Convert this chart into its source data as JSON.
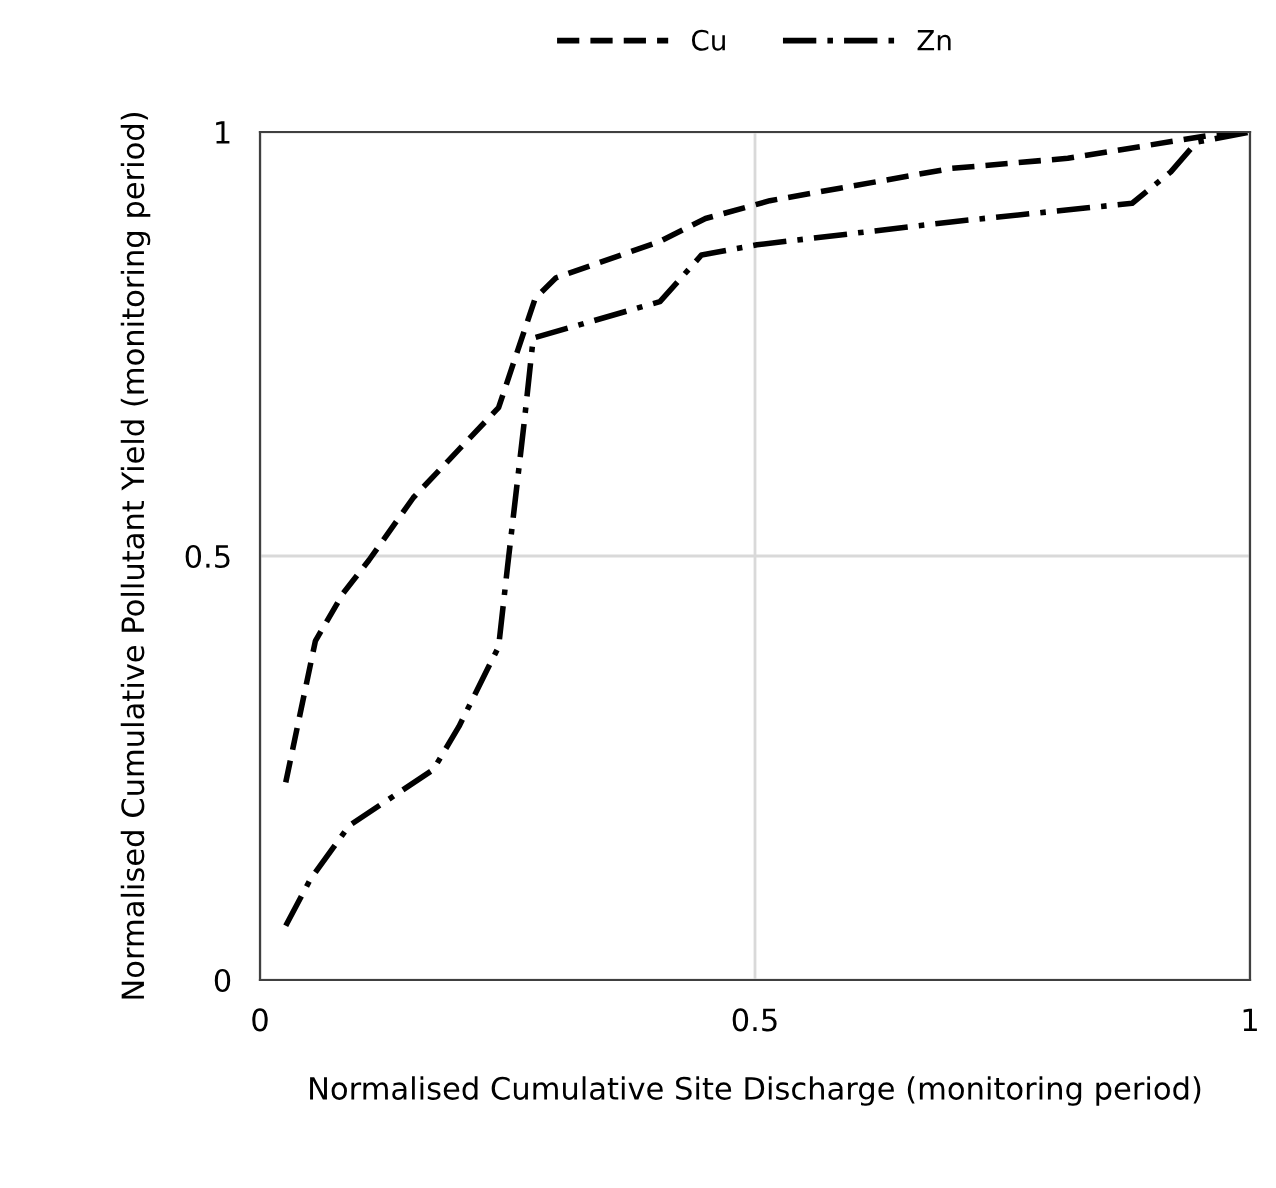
{
  "chart_data": {
    "type": "line",
    "xlabel": "Normalised Cumulative Site Discharge (monitoring period)",
    "ylabel": "Normalised Cumulative Pollutant Yield (monitoring period)",
    "xlim": [
      0,
      1
    ],
    "ylim": [
      0,
      1
    ],
    "xticks": [
      0,
      0.5,
      1
    ],
    "yticks": [
      0,
      0.5,
      1
    ],
    "grid": true,
    "legend": "top",
    "series": [
      {
        "name": "Cu",
        "color": "#000000",
        "line_style": "dashed",
        "x": [
          0.026,
          0.056,
          0.084,
          0.11,
          0.155,
          0.241,
          0.278,
          0.299,
          0.404,
          0.45,
          0.515,
          0.698,
          0.816,
          0.959,
          1.0
        ],
        "values": [
          0.233,
          0.4,
          0.456,
          0.495,
          0.569,
          0.675,
          0.804,
          0.828,
          0.871,
          0.898,
          0.919,
          0.957,
          0.969,
          0.996,
          1.0
        ]
      },
      {
        "name": "Zn",
        "color": "#000000",
        "line_style": "dashdot",
        "x": [
          0.026,
          0.051,
          0.09,
          0.175,
          0.201,
          0.241,
          0.25,
          0.267,
          0.276,
          0.404,
          0.446,
          0.502,
          0.698,
          0.881,
          0.92,
          0.946,
          1.0
        ],
        "values": [
          0.064,
          0.119,
          0.182,
          0.248,
          0.299,
          0.393,
          0.487,
          0.659,
          0.757,
          0.8,
          0.855,
          0.867,
          0.894,
          0.916,
          0.953,
          0.988,
          1.0
        ]
      }
    ]
  }
}
